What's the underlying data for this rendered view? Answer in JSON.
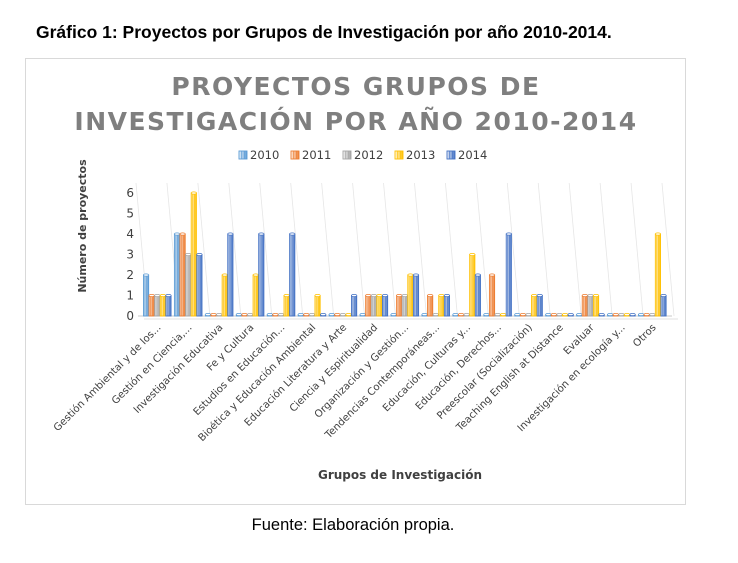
{
  "caption": "Gráfico 1: Proyectos por Grupos de Investigación por año 2010-2014.",
  "source": "Fuente: Elaboración propia.",
  "chart_data": {
    "type": "bar",
    "title_lines": [
      "PROYECTOS GRUPOS DE",
      "INVESTIGACIÓN POR AÑO 2010-2014"
    ],
    "xlabel": "Grupos de Investigación",
    "ylabel": "Número de proyectos",
    "ylim": [
      0,
      6
    ],
    "yticks": [
      0,
      1,
      2,
      3,
      4,
      5,
      6
    ],
    "legend_position": "top",
    "categories": [
      "Gestión Ambiental y de los...",
      "Gestión en Ciencia,...",
      "Investigación Educativa",
      "Fe y Cultura",
      "Estudios en Educación...",
      "Bioética y Educación Ambiental",
      "Educación Literatura y Arte",
      "Ciencia y Espiritualidad",
      "Organización y Gestión...",
      "Tendencias Contemporáneas...",
      "Educación, Culturas y...",
      "Educación, Derechos...",
      "Preescolar (Socialización)",
      "Teaching English at Distance",
      "Evaluar",
      "Investigación en ecología y...",
      "Otros"
    ],
    "series": [
      {
        "name": "2010",
        "color": "#5b9bd5",
        "values": [
          2,
          4,
          0,
          0,
          0,
          0,
          0,
          0,
          0,
          0,
          0,
          0,
          0,
          0,
          0,
          0,
          0
        ]
      },
      {
        "name": "2011",
        "color": "#ed7d31",
        "values": [
          1,
          4,
          0,
          0,
          0,
          0,
          0,
          1,
          1,
          1,
          0,
          2,
          0,
          0,
          1,
          0,
          0
        ]
      },
      {
        "name": "2012",
        "color": "#a5a5a5",
        "values": [
          1,
          3,
          0,
          0,
          0,
          0,
          0,
          1,
          1,
          0,
          0,
          0,
          0,
          0,
          1,
          0,
          0
        ]
      },
      {
        "name": "2013",
        "color": "#ffc000",
        "values": [
          1,
          6,
          2,
          2,
          1,
          1,
          0,
          1,
          2,
          1,
          3,
          0,
          1,
          0,
          1,
          0,
          4
        ]
      },
      {
        "name": "2014",
        "color": "#4472c4",
        "values": [
          1,
          3,
          4,
          4,
          4,
          0,
          1,
          1,
          2,
          1,
          2,
          4,
          1,
          0,
          0,
          0,
          1
        ]
      }
    ]
  }
}
